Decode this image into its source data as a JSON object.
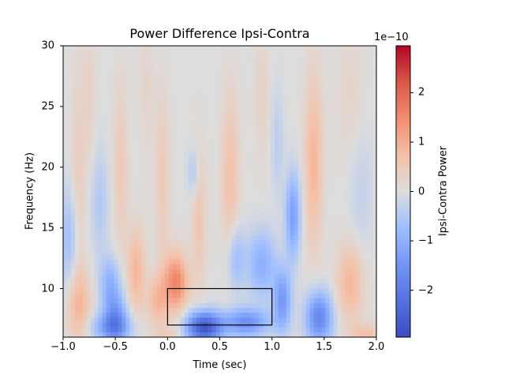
{
  "chart_data": {
    "type": "heatmap",
    "title": "Power Difference Ipsi-Contra",
    "xlabel": "Time (sec)",
    "ylabel": "Frequency (Hz)",
    "xlim": [
      -1.0,
      2.0
    ],
    "ylim": [
      6,
      30
    ],
    "xticks": [
      "−1.0",
      "−0.5",
      "0.0",
      "0.5",
      "1.0",
      "1.5",
      "2.0"
    ],
    "yticks": [
      "10",
      "15",
      "20",
      "25",
      "30"
    ],
    "colormap": "coolwarm",
    "colorbar": {
      "label": "Ipsi-Contra Power",
      "exponent": "1e−10",
      "range": [
        -2.95e-10,
        2.95e-10
      ],
      "ticks": [
        "−2",
        "−1",
        "0",
        "1",
        "2"
      ],
      "min_color": "#3b4cc0",
      "mid_color": "#dddddd",
      "max_color": "#b40426"
    },
    "annotations": [
      {
        "type": "rectangle",
        "x0": 0.0,
        "x1": 1.0,
        "y0": 7,
        "y1": 10,
        "color": "#000000"
      }
    ],
    "blobs": [
      {
        "t": -0.85,
        "f": 8.5,
        "v": 0.9,
        "st": 0.08,
        "sf": 2.2
      },
      {
        "t": -0.5,
        "f": 7.5,
        "v": -1.4,
        "st": 0.08,
        "sf": 1.5
      },
      {
        "t": -0.55,
        "f": 10.5,
        "v": -0.9,
        "st": 0.07,
        "sf": 1.5
      },
      {
        "t": -0.3,
        "f": 11.5,
        "v": 0.9,
        "st": 0.06,
        "sf": 2.5
      },
      {
        "t": -0.55,
        "f": 6.8,
        "v": -1.0,
        "st": 0.15,
        "sf": 0.8
      },
      {
        "t": 0.08,
        "f": 10.5,
        "v": 1.6,
        "st": 0.08,
        "sf": 1.7
      },
      {
        "t": -0.1,
        "f": 9.0,
        "v": 0.8,
        "st": 0.07,
        "sf": 1.5
      },
      {
        "t": 0.35,
        "f": 6.8,
        "v": -2.8,
        "st": 0.12,
        "sf": 0.9
      },
      {
        "t": 0.75,
        "f": 7.2,
        "v": -1.6,
        "st": 0.15,
        "sf": 0.8
      },
      {
        "t": 1.1,
        "f": 9.0,
        "v": -1.4,
        "st": 0.06,
        "sf": 1.8
      },
      {
        "t": 1.45,
        "f": 7.6,
        "v": -1.8,
        "st": 0.09,
        "sf": 1.5
      },
      {
        "t": 1.2,
        "f": 16.0,
        "v": -1.3,
        "st": 0.05,
        "sf": 2.5
      },
      {
        "t": 0.9,
        "f": 12.0,
        "v": -1.0,
        "st": 0.1,
        "sf": 2.0
      },
      {
        "t": 0.65,
        "f": 12.5,
        "v": -0.8,
        "st": 0.06,
        "sf": 2.0
      },
      {
        "t": 1.75,
        "f": 10.5,
        "v": 0.9,
        "st": 0.09,
        "sf": 2.3
      },
      {
        "t": 1.4,
        "f": 20.5,
        "v": 0.9,
        "st": 0.06,
        "sf": 5.0
      },
      {
        "t": 0.6,
        "f": 19.0,
        "v": 0.7,
        "st": 0.06,
        "sf": 5.0
      },
      {
        "t": 0.3,
        "f": 16.0,
        "v": 0.6,
        "st": 0.05,
        "sf": 4.0
      },
      {
        "t": -0.05,
        "f": 19.0,
        "v": 0.5,
        "st": 0.05,
        "sf": 5.0
      },
      {
        "t": -0.45,
        "f": 20.0,
        "v": 0.5,
        "st": 0.05,
        "sf": 5.0
      },
      {
        "t": -0.85,
        "f": 20.0,
        "v": 0.4,
        "st": 0.05,
        "sf": 6.0
      },
      {
        "t": -0.95,
        "f": 14.0,
        "v": -0.7,
        "st": 0.06,
        "sf": 3.0
      },
      {
        "t": -0.65,
        "f": 17.0,
        "v": -0.5,
        "st": 0.06,
        "sf": 3.0
      },
      {
        "t": 0.25,
        "f": 19.5,
        "v": -0.6,
        "st": 0.04,
        "sf": 1.5
      },
      {
        "t": 1.05,
        "f": 22.0,
        "v": -0.4,
        "st": 0.04,
        "sf": 3.0
      },
      {
        "t": 1.85,
        "f": 18.0,
        "v": -0.3,
        "st": 0.08,
        "sf": 4.0
      },
      {
        "t": 1.75,
        "f": 26.0,
        "v": 0.25,
        "st": 0.1,
        "sf": 4.0
      },
      {
        "t": 0.9,
        "f": 26.0,
        "v": 0.3,
        "st": 0.05,
        "sf": 4.0
      },
      {
        "t": -0.75,
        "f": 26.0,
        "v": 0.3,
        "st": 0.04,
        "sf": 4.0
      },
      {
        "t": -0.2,
        "f": 27.0,
        "v": 0.25,
        "st": 0.05,
        "sf": 4.0
      },
      {
        "t": 1.9,
        "f": 6.2,
        "v": 0.7,
        "st": 0.1,
        "sf": 0.6
      },
      {
        "t": 0.0,
        "f": 6.0,
        "v": 0.4,
        "st": 0.1,
        "sf": 0.6
      }
    ]
  }
}
